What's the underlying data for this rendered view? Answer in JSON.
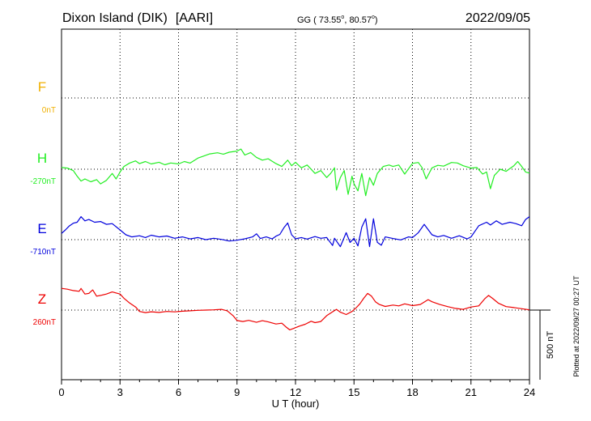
{
  "chart_data": {
    "type": "line",
    "station": "Dixon Island (DIK)",
    "institute": "[AARI]",
    "coords_prefix": "GG ( 73.55",
    "coords_sep": ",  80.57",
    "coords_suffix": ")",
    "deg_symbol": "o",
    "date": "2022/09/05",
    "xlabel": "U T (hour)",
    "xlim": [
      0,
      24
    ],
    "xticks": [
      0,
      3,
      6,
      9,
      12,
      15,
      18,
      21,
      24
    ],
    "scale_bar_label": "500 nT",
    "plotted_note": "Plotted at 2022/09/27 00:27 UT",
    "grid": true,
    "series": [
      {
        "name": "F",
        "baseline_label": "0nT",
        "color": "#f0b000",
        "offset": 0,
        "points": []
      },
      {
        "name": "H",
        "baseline_label": "-270nT",
        "color": "#22ee22",
        "offset": -270,
        "points": [
          [
            0,
            -258
          ],
          [
            0.3,
            -262
          ],
          [
            0.6,
            -280
          ],
          [
            0.8,
            -320
          ],
          [
            1.0,
            -355
          ],
          [
            1.2,
            -340
          ],
          [
            1.5,
            -360
          ],
          [
            1.8,
            -345
          ],
          [
            2.0,
            -375
          ],
          [
            2.3,
            -350
          ],
          [
            2.6,
            -300
          ],
          [
            2.8,
            -340
          ],
          [
            3.0,
            -290
          ],
          [
            3.2,
            -250
          ],
          [
            3.5,
            -225
          ],
          [
            3.8,
            -210
          ],
          [
            4.0,
            -230
          ],
          [
            4.3,
            -215
          ],
          [
            4.6,
            -232
          ],
          [
            5.0,
            -220
          ],
          [
            5.3,
            -238
          ],
          [
            5.6,
            -225
          ],
          [
            6.0,
            -232
          ],
          [
            6.3,
            -215
          ],
          [
            6.6,
            -226
          ],
          [
            7.0,
            -190
          ],
          [
            7.3,
            -175
          ],
          [
            7.6,
            -160
          ],
          [
            8.0,
            -152
          ],
          [
            8.3,
            -162
          ],
          [
            8.6,
            -148
          ],
          [
            9.0,
            -140
          ],
          [
            9.2,
            -125
          ],
          [
            9.4,
            -168
          ],
          [
            9.7,
            -150
          ],
          [
            10.0,
            -185
          ],
          [
            10.3,
            -205
          ],
          [
            10.6,
            -195
          ],
          [
            11.0,
            -230
          ],
          [
            11.3,
            -250
          ],
          [
            11.6,
            -205
          ],
          [
            11.8,
            -245
          ],
          [
            12.0,
            -220
          ],
          [
            12.3,
            -260
          ],
          [
            12.6,
            -240
          ],
          [
            13.0,
            -300
          ],
          [
            13.3,
            -280
          ],
          [
            13.6,
            -330
          ],
          [
            13.8,
            -300
          ],
          [
            14.0,
            -260
          ],
          [
            14.1,
            -420
          ],
          [
            14.3,
            -330
          ],
          [
            14.5,
            -280
          ],
          [
            14.7,
            -450
          ],
          [
            14.9,
            -320
          ],
          [
            15.0,
            -375
          ],
          [
            15.2,
            -425
          ],
          [
            15.4,
            -300
          ],
          [
            15.6,
            -460
          ],
          [
            15.8,
            -330
          ],
          [
            16.0,
            -385
          ],
          [
            16.2,
            -300
          ],
          [
            16.5,
            -250
          ],
          [
            16.8,
            -240
          ],
          [
            17.0,
            -250
          ],
          [
            17.3,
            -240
          ],
          [
            17.6,
            -305
          ],
          [
            18.0,
            -228
          ],
          [
            18.3,
            -222
          ],
          [
            18.5,
            -260
          ],
          [
            18.7,
            -340
          ],
          [
            19.0,
            -260
          ],
          [
            19.3,
            -242
          ],
          [
            19.6,
            -248
          ],
          [
            20.0,
            -222
          ],
          [
            20.3,
            -225
          ],
          [
            20.6,
            -245
          ],
          [
            21.0,
            -262
          ],
          [
            21.3,
            -258
          ],
          [
            21.6,
            -305
          ],
          [
            21.8,
            -290
          ],
          [
            22.0,
            -410
          ],
          [
            22.2,
            -315
          ],
          [
            22.5,
            -270
          ],
          [
            22.8,
            -285
          ],
          [
            23.0,
            -265
          ],
          [
            23.2,
            -245
          ],
          [
            23.4,
            -215
          ],
          [
            23.6,
            -250
          ],
          [
            23.8,
            -290
          ],
          [
            24.0,
            -298
          ]
        ]
      },
      {
        "name": "E",
        "baseline_label": "-710nT",
        "color": "#0000dd",
        "offset": -710,
        "points": [
          [
            0,
            -665
          ],
          [
            0.2,
            -640
          ],
          [
            0.4,
            -612
          ],
          [
            0.6,
            -592
          ],
          [
            0.8,
            -585
          ],
          [
            1.0,
            -545
          ],
          [
            1.2,
            -575
          ],
          [
            1.4,
            -565
          ],
          [
            1.7,
            -585
          ],
          [
            2.0,
            -580
          ],
          [
            2.3,
            -600
          ],
          [
            2.6,
            -595
          ],
          [
            3.0,
            -640
          ],
          [
            3.3,
            -675
          ],
          [
            3.6,
            -690
          ],
          [
            4.0,
            -682
          ],
          [
            4.3,
            -695
          ],
          [
            4.6,
            -678
          ],
          [
            5.0,
            -690
          ],
          [
            5.4,
            -684
          ],
          [
            5.8,
            -700
          ],
          [
            6.2,
            -690
          ],
          [
            6.6,
            -705
          ],
          [
            7.0,
            -695
          ],
          [
            7.4,
            -710
          ],
          [
            7.8,
            -700
          ],
          [
            8.2,
            -708
          ],
          [
            8.6,
            -720
          ],
          [
            9.0,
            -714
          ],
          [
            9.4,
            -704
          ],
          [
            9.8,
            -690
          ],
          [
            10.0,
            -668
          ],
          [
            10.2,
            -702
          ],
          [
            10.5,
            -690
          ],
          [
            10.8,
            -705
          ],
          [
            11.0,
            -685
          ],
          [
            11.2,
            -672
          ],
          [
            11.4,
            -625
          ],
          [
            11.6,
            -590
          ],
          [
            11.8,
            -675
          ],
          [
            12.0,
            -704
          ],
          [
            12.3,
            -695
          ],
          [
            12.6,
            -706
          ],
          [
            13.0,
            -688
          ],
          [
            13.3,
            -700
          ],
          [
            13.6,
            -695
          ],
          [
            13.9,
            -752
          ],
          [
            14.0,
            -700
          ],
          [
            14.3,
            -760
          ],
          [
            14.6,
            -660
          ],
          [
            14.8,
            -730
          ],
          [
            15.0,
            -700
          ],
          [
            15.2,
            -755
          ],
          [
            15.4,
            -620
          ],
          [
            15.6,
            -560
          ],
          [
            15.8,
            -760
          ],
          [
            16.0,
            -560
          ],
          [
            16.2,
            -730
          ],
          [
            16.4,
            -750
          ],
          [
            16.6,
            -690
          ],
          [
            17.0,
            -702
          ],
          [
            17.4,
            -712
          ],
          [
            17.8,
            -690
          ],
          [
            18.0,
            -695
          ],
          [
            18.3,
            -660
          ],
          [
            18.6,
            -600
          ],
          [
            19.0,
            -675
          ],
          [
            19.3,
            -690
          ],
          [
            19.6,
            -680
          ],
          [
            20.0,
            -700
          ],
          [
            20.4,
            -682
          ],
          [
            20.8,
            -705
          ],
          [
            21.0,
            -690
          ],
          [
            21.4,
            -610
          ],
          [
            21.8,
            -585
          ],
          [
            22.0,
            -605
          ],
          [
            22.3,
            -575
          ],
          [
            22.6,
            -600
          ],
          [
            23.0,
            -585
          ],
          [
            23.3,
            -595
          ],
          [
            23.6,
            -610
          ],
          [
            23.8,
            -565
          ],
          [
            24.0,
            -545
          ]
        ]
      },
      {
        "name": "Z",
        "baseline_label": "260nT",
        "color": "#ee0000",
        "offset": 260,
        "points": [
          [
            0,
            416
          ],
          [
            0.3,
            410
          ],
          [
            0.6,
            400
          ],
          [
            0.9,
            395
          ],
          [
            1.0,
            415
          ],
          [
            1.2,
            375
          ],
          [
            1.4,
            380
          ],
          [
            1.6,
            405
          ],
          [
            1.8,
            360
          ],
          [
            2.0,
            365
          ],
          [
            2.3,
            375
          ],
          [
            2.6,
            390
          ],
          [
            3.0,
            375
          ],
          [
            3.2,
            345
          ],
          [
            3.5,
            310
          ],
          [
            3.8,
            282
          ],
          [
            4.0,
            250
          ],
          [
            4.3,
            242
          ],
          [
            4.6,
            248
          ],
          [
            5.0,
            243
          ],
          [
            5.4,
            250
          ],
          [
            5.8,
            247
          ],
          [
            6.2,
            252
          ],
          [
            6.6,
            255
          ],
          [
            7.0,
            258
          ],
          [
            7.4,
            260
          ],
          [
            7.8,
            262
          ],
          [
            8.2,
            265
          ],
          [
            8.5,
            255
          ],
          [
            8.8,
            220
          ],
          [
            9.0,
            185
          ],
          [
            9.3,
            178
          ],
          [
            9.6,
            186
          ],
          [
            10.0,
            172
          ],
          [
            10.3,
            184
          ],
          [
            10.6,
            175
          ],
          [
            11.0,
            160
          ],
          [
            11.3,
            166
          ],
          [
            11.5,
            140
          ],
          [
            11.7,
            118
          ],
          [
            11.9,
            128
          ],
          [
            12.2,
            145
          ],
          [
            12.5,
            158
          ],
          [
            12.8,
            180
          ],
          [
            13.0,
            170
          ],
          [
            13.3,
            178
          ],
          [
            13.6,
            220
          ],
          [
            13.9,
            248
          ],
          [
            14.1,
            265
          ],
          [
            14.3,
            245
          ],
          [
            14.6,
            228
          ],
          [
            14.9,
            250
          ],
          [
            15.1,
            275
          ],
          [
            15.3,
            305
          ],
          [
            15.5,
            345
          ],
          [
            15.7,
            380
          ],
          [
            15.9,
            360
          ],
          [
            16.1,
            320
          ],
          [
            16.3,
            300
          ],
          [
            16.6,
            286
          ],
          [
            17.0,
            296
          ],
          [
            17.3,
            290
          ],
          [
            17.6,
            305
          ],
          [
            18.0,
            292
          ],
          [
            18.4,
            300
          ],
          [
            18.8,
            335
          ],
          [
            19.0,
            320
          ],
          [
            19.4,
            300
          ],
          [
            19.8,
            285
          ],
          [
            20.2,
            272
          ],
          [
            20.6,
            265
          ],
          [
            21.0,
            282
          ],
          [
            21.4,
            290
          ],
          [
            21.7,
            340
          ],
          [
            21.9,
            365
          ],
          [
            22.1,
            345
          ],
          [
            22.4,
            310
          ],
          [
            22.8,
            285
          ],
          [
            23.2,
            278
          ],
          [
            23.6,
            270
          ],
          [
            24.0,
            262
          ]
        ]
      }
    ]
  }
}
